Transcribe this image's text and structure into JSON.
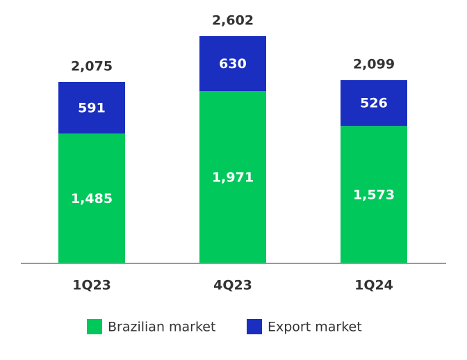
{
  "chart_data": {
    "type": "stacked-bar",
    "categories": [
      "1Q23",
      "4Q23",
      "1Q24"
    ],
    "series": [
      {
        "name": "Brazilian market",
        "color": "#00c85a",
        "values": [
          1485,
          1971,
          1573
        ],
        "value_labels": [
          "1,485",
          "1,971",
          "1,573"
        ]
      },
      {
        "name": "Export market",
        "color": "#1a2fbf",
        "values": [
          591,
          630,
          526
        ],
        "value_labels": [
          "591",
          "630",
          "526"
        ]
      }
    ],
    "totals": [
      2075,
      2602,
      2099
    ],
    "total_labels": [
      "2,075",
      "2,602",
      "2,099"
    ]
  }
}
